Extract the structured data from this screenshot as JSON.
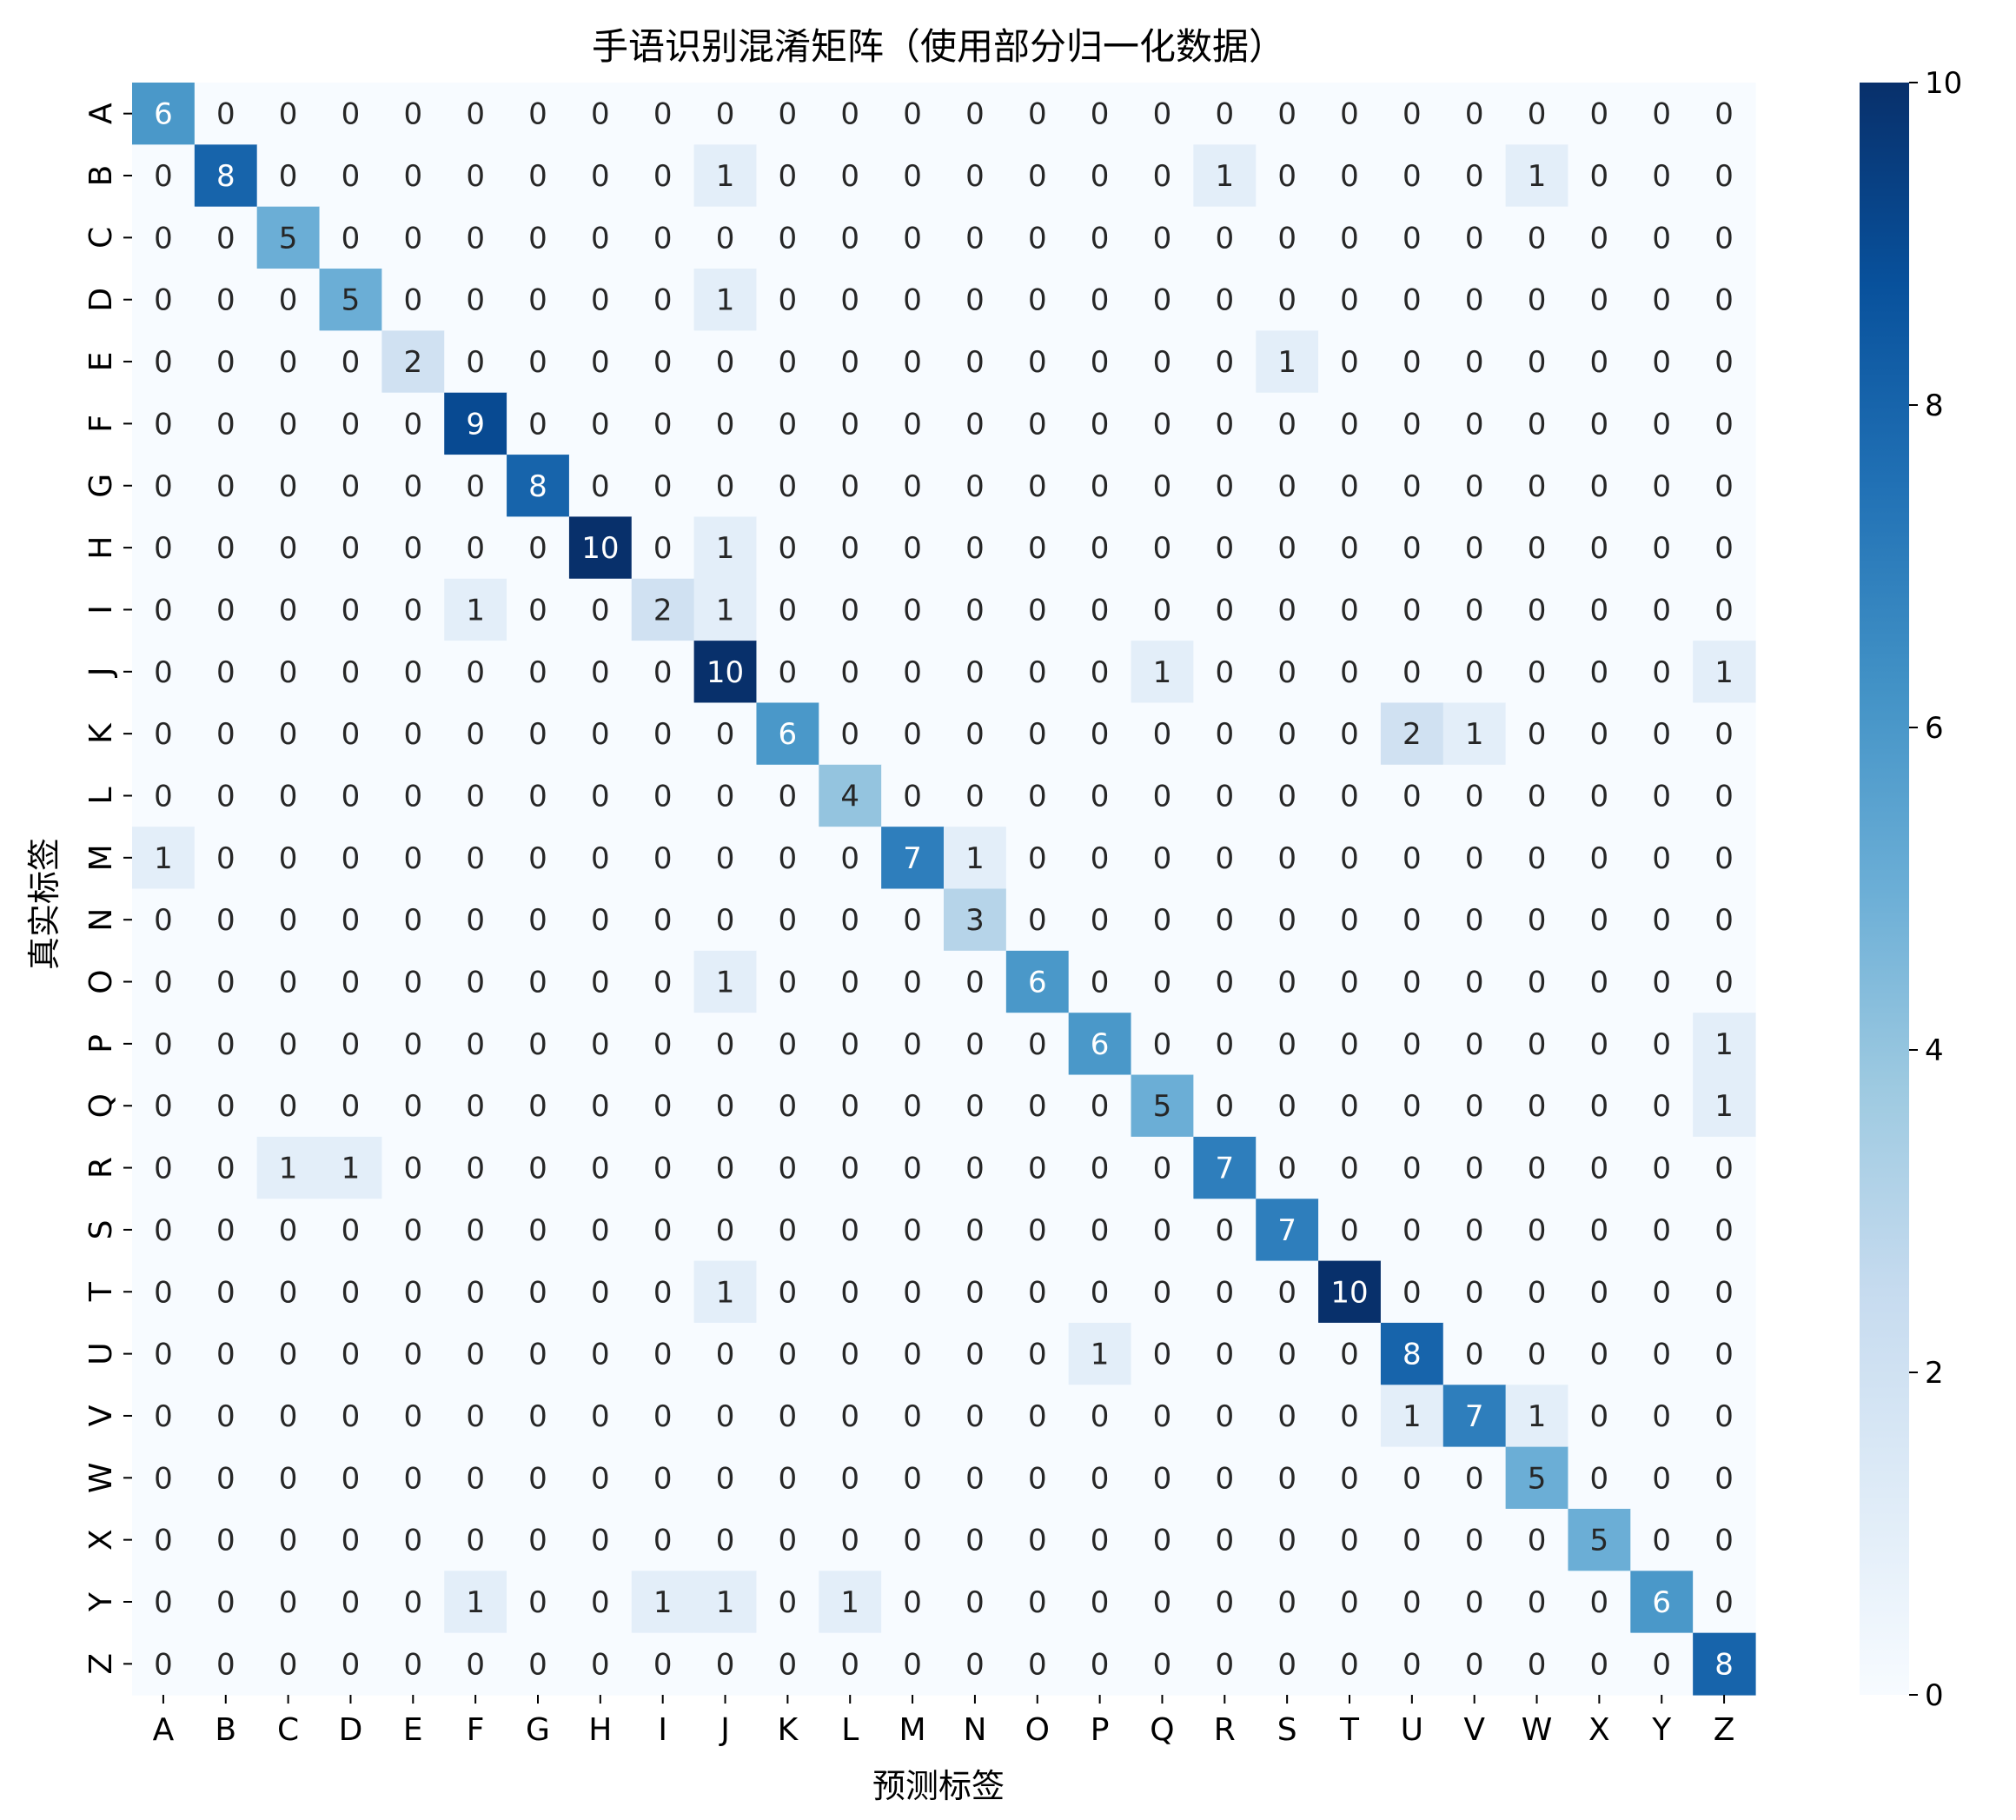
{
  "chart_data": {
    "type": "heatmap",
    "title": "手语识别混淆矩阵（使用部分归一化数据）",
    "xlabel": "预测标签",
    "ylabel": "真实标签",
    "x_categories": [
      "A",
      "B",
      "C",
      "D",
      "E",
      "F",
      "G",
      "H",
      "I",
      "J",
      "K",
      "L",
      "M",
      "N",
      "O",
      "P",
      "Q",
      "R",
      "S",
      "T",
      "U",
      "V",
      "W",
      "X",
      "Y",
      "Z"
    ],
    "y_categories": [
      "A",
      "B",
      "C",
      "D",
      "E",
      "F",
      "G",
      "H",
      "I",
      "J",
      "K",
      "L",
      "M",
      "N",
      "O",
      "P",
      "Q",
      "R",
      "S",
      "T",
      "U",
      "V",
      "W",
      "X",
      "Y",
      "Z"
    ],
    "values": [
      [
        6,
        0,
        0,
        0,
        0,
        0,
        0,
        0,
        0,
        0,
        0,
        0,
        0,
        0,
        0,
        0,
        0,
        0,
        0,
        0,
        0,
        0,
        0,
        0,
        0,
        0
      ],
      [
        0,
        8,
        0,
        0,
        0,
        0,
        0,
        0,
        0,
        1,
        0,
        0,
        0,
        0,
        0,
        0,
        0,
        1,
        0,
        0,
        0,
        0,
        1,
        0,
        0,
        0
      ],
      [
        0,
        0,
        5,
        0,
        0,
        0,
        0,
        0,
        0,
        0,
        0,
        0,
        0,
        0,
        0,
        0,
        0,
        0,
        0,
        0,
        0,
        0,
        0,
        0,
        0,
        0
      ],
      [
        0,
        0,
        0,
        5,
        0,
        0,
        0,
        0,
        0,
        1,
        0,
        0,
        0,
        0,
        0,
        0,
        0,
        0,
        0,
        0,
        0,
        0,
        0,
        0,
        0,
        0
      ],
      [
        0,
        0,
        0,
        0,
        2,
        0,
        0,
        0,
        0,
        0,
        0,
        0,
        0,
        0,
        0,
        0,
        0,
        0,
        1,
        0,
        0,
        0,
        0,
        0,
        0,
        0
      ],
      [
        0,
        0,
        0,
        0,
        0,
        9,
        0,
        0,
        0,
        0,
        0,
        0,
        0,
        0,
        0,
        0,
        0,
        0,
        0,
        0,
        0,
        0,
        0,
        0,
        0,
        0
      ],
      [
        0,
        0,
        0,
        0,
        0,
        0,
        8,
        0,
        0,
        0,
        0,
        0,
        0,
        0,
        0,
        0,
        0,
        0,
        0,
        0,
        0,
        0,
        0,
        0,
        0,
        0
      ],
      [
        0,
        0,
        0,
        0,
        0,
        0,
        0,
        10,
        0,
        1,
        0,
        0,
        0,
        0,
        0,
        0,
        0,
        0,
        0,
        0,
        0,
        0,
        0,
        0,
        0,
        0
      ],
      [
        0,
        0,
        0,
        0,
        0,
        1,
        0,
        0,
        2,
        1,
        0,
        0,
        0,
        0,
        0,
        0,
        0,
        0,
        0,
        0,
        0,
        0,
        0,
        0,
        0,
        0
      ],
      [
        0,
        0,
        0,
        0,
        0,
        0,
        0,
        0,
        0,
        10,
        0,
        0,
        0,
        0,
        0,
        0,
        1,
        0,
        0,
        0,
        0,
        0,
        0,
        0,
        0,
        1
      ],
      [
        0,
        0,
        0,
        0,
        0,
        0,
        0,
        0,
        0,
        0,
        6,
        0,
        0,
        0,
        0,
        0,
        0,
        0,
        0,
        0,
        2,
        1,
        0,
        0,
        0,
        0
      ],
      [
        0,
        0,
        0,
        0,
        0,
        0,
        0,
        0,
        0,
        0,
        0,
        4,
        0,
        0,
        0,
        0,
        0,
        0,
        0,
        0,
        0,
        0,
        0,
        0,
        0,
        0
      ],
      [
        1,
        0,
        0,
        0,
        0,
        0,
        0,
        0,
        0,
        0,
        0,
        0,
        7,
        1,
        0,
        0,
        0,
        0,
        0,
        0,
        0,
        0,
        0,
        0,
        0,
        0
      ],
      [
        0,
        0,
        0,
        0,
        0,
        0,
        0,
        0,
        0,
        0,
        0,
        0,
        0,
        3,
        0,
        0,
        0,
        0,
        0,
        0,
        0,
        0,
        0,
        0,
        0,
        0
      ],
      [
        0,
        0,
        0,
        0,
        0,
        0,
        0,
        0,
        0,
        1,
        0,
        0,
        0,
        0,
        6,
        0,
        0,
        0,
        0,
        0,
        0,
        0,
        0,
        0,
        0,
        0
      ],
      [
        0,
        0,
        0,
        0,
        0,
        0,
        0,
        0,
        0,
        0,
        0,
        0,
        0,
        0,
        0,
        6,
        0,
        0,
        0,
        0,
        0,
        0,
        0,
        0,
        0,
        1
      ],
      [
        0,
        0,
        0,
        0,
        0,
        0,
        0,
        0,
        0,
        0,
        0,
        0,
        0,
        0,
        0,
        0,
        5,
        0,
        0,
        0,
        0,
        0,
        0,
        0,
        0,
        1
      ],
      [
        0,
        0,
        1,
        1,
        0,
        0,
        0,
        0,
        0,
        0,
        0,
        0,
        0,
        0,
        0,
        0,
        0,
        7,
        0,
        0,
        0,
        0,
        0,
        0,
        0,
        0
      ],
      [
        0,
        0,
        0,
        0,
        0,
        0,
        0,
        0,
        0,
        0,
        0,
        0,
        0,
        0,
        0,
        0,
        0,
        0,
        7,
        0,
        0,
        0,
        0,
        0,
        0,
        0
      ],
      [
        0,
        0,
        0,
        0,
        0,
        0,
        0,
        0,
        0,
        1,
        0,
        0,
        0,
        0,
        0,
        0,
        0,
        0,
        0,
        10,
        0,
        0,
        0,
        0,
        0,
        0
      ],
      [
        0,
        0,
        0,
        0,
        0,
        0,
        0,
        0,
        0,
        0,
        0,
        0,
        0,
        0,
        0,
        1,
        0,
        0,
        0,
        0,
        8,
        0,
        0,
        0,
        0,
        0
      ],
      [
        0,
        0,
        0,
        0,
        0,
        0,
        0,
        0,
        0,
        0,
        0,
        0,
        0,
        0,
        0,
        0,
        0,
        0,
        0,
        0,
        1,
        7,
        1,
        0,
        0,
        0
      ],
      [
        0,
        0,
        0,
        0,
        0,
        0,
        0,
        0,
        0,
        0,
        0,
        0,
        0,
        0,
        0,
        0,
        0,
        0,
        0,
        0,
        0,
        0,
        5,
        0,
        0,
        0
      ],
      [
        0,
        0,
        0,
        0,
        0,
        0,
        0,
        0,
        0,
        0,
        0,
        0,
        0,
        0,
        0,
        0,
        0,
        0,
        0,
        0,
        0,
        0,
        0,
        5,
        0,
        0
      ],
      [
        0,
        0,
        0,
        0,
        0,
        1,
        0,
        0,
        1,
        1,
        0,
        1,
        0,
        0,
        0,
        0,
        0,
        0,
        0,
        0,
        0,
        0,
        0,
        0,
        6,
        0
      ],
      [
        0,
        0,
        0,
        0,
        0,
        0,
        0,
        0,
        0,
        0,
        0,
        0,
        0,
        0,
        0,
        0,
        0,
        0,
        0,
        0,
        0,
        0,
        0,
        0,
        0,
        8
      ]
    ],
    "colormap": "Blues",
    "vmin": 0,
    "vmax": 10,
    "colorbar_ticks": [
      0,
      2,
      4,
      6,
      8,
      10
    ],
    "annotated": true,
    "grid": false,
    "colorbar_position": "right"
  }
}
